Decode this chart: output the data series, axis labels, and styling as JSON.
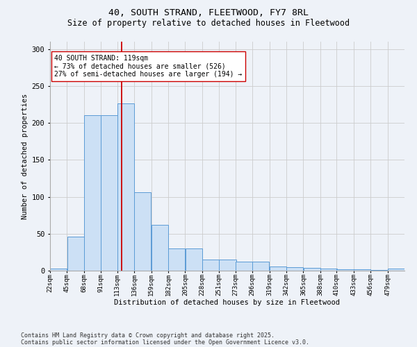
{
  "title1": "40, SOUTH STRAND, FLEETWOOD, FY7 8RL",
  "title2": "Size of property relative to detached houses in Fleetwood",
  "xlabel": "Distribution of detached houses by size in Fleetwood",
  "ylabel": "Number of detached properties",
  "bar_edges": [
    22,
    45,
    68,
    91,
    113,
    136,
    159,
    182,
    205,
    228,
    251,
    273,
    296,
    319,
    342,
    365,
    388,
    410,
    433,
    456,
    479
  ],
  "bar_heights": [
    3,
    46,
    210,
    210,
    226,
    106,
    62,
    30,
    30,
    15,
    15,
    12,
    12,
    6,
    5,
    4,
    3,
    2,
    2,
    1,
    3
  ],
  "bar_fill_color": "#cce0f5",
  "bar_edge_color": "#5b9bd5",
  "vline_x": 119,
  "vline_color": "#cc0000",
  "annotation_text": "40 SOUTH STRAND: 119sqm\n← 73% of detached houses are smaller (526)\n27% of semi-detached houses are larger (194) →",
  "annotation_box_color": "#ffffff",
  "annotation_box_edge": "#cc0000",
  "ylim": [
    0,
    310
  ],
  "xlim": [
    22,
    502
  ],
  "grid_color": "#cccccc",
  "background_color": "#eef2f8",
  "tick_labels": [
    "22sqm",
    "45sqm",
    "68sqm",
    "91sqm",
    "113sqm",
    "136sqm",
    "159sqm",
    "182sqm",
    "205sqm",
    "228sqm",
    "251sqm",
    "273sqm",
    "296sqm",
    "319sqm",
    "342sqm",
    "365sqm",
    "388sqm",
    "410sqm",
    "433sqm",
    "456sqm",
    "479sqm"
  ],
  "footer1": "Contains HM Land Registry data © Crown copyright and database right 2025.",
  "footer2": "Contains public sector information licensed under the Open Government Licence v3.0.",
  "title1_fontsize": 9.5,
  "title2_fontsize": 8.5,
  "annot_fontsize": 7,
  "tick_fontsize": 6.5,
  "ytick_fontsize": 7.5,
  "xlabel_fontsize": 7.5,
  "ylabel_fontsize": 7.5,
  "footer_fontsize": 6
}
